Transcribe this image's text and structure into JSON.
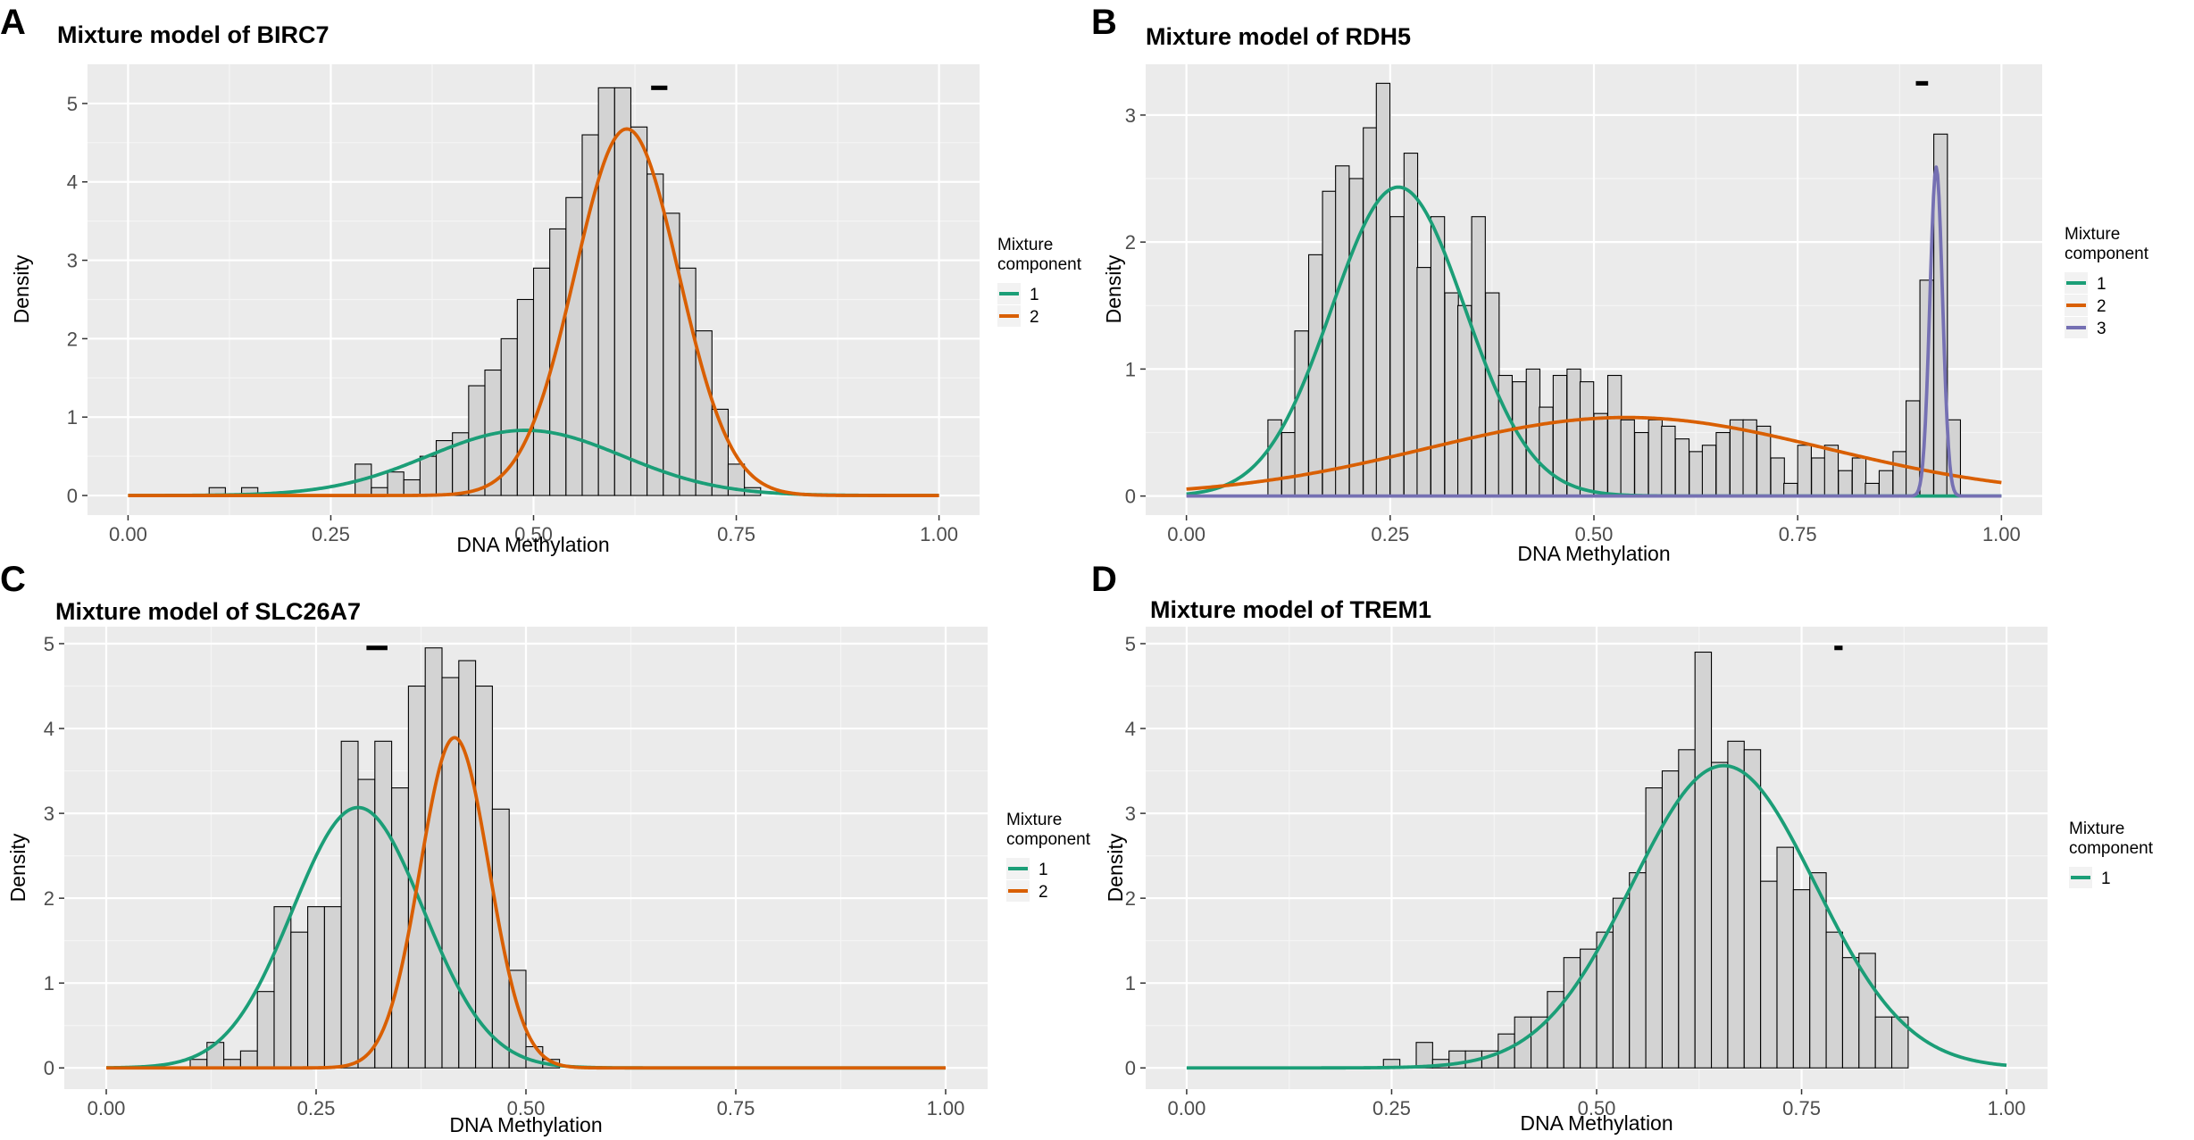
{
  "chart_data": [
    {
      "panel": "A",
      "type": "histogram+density",
      "title": "Mixture model of BIRC7",
      "xlabel": "DNA Methylation",
      "ylabel": "Density",
      "xlim": [
        -0.05,
        1.05
      ],
      "ylim": [
        -0.25,
        5.5
      ],
      "xticks": [
        0,
        0.25,
        0.5,
        0.75,
        1
      ],
      "xtick_labels": [
        "0.00",
        "0.25",
        "0.50",
        "0.75",
        "1.00"
      ],
      "yticks": [
        0,
        1,
        2,
        3,
        4,
        5
      ],
      "ytick_labels": [
        "0",
        "1",
        "2",
        "3",
        "4",
        "5"
      ],
      "bin_width": 0.02,
      "bins_start": [
        0.1,
        0.12,
        0.14,
        0.16,
        0.18,
        0.2,
        0.22,
        0.24,
        0.26,
        0.28,
        0.3,
        0.32,
        0.34,
        0.36,
        0.38,
        0.4,
        0.42,
        0.44,
        0.46,
        0.48,
        0.5,
        0.52,
        0.54,
        0.56,
        0.58,
        0.6,
        0.62,
        0.64,
        0.66,
        0.68,
        0.7,
        0.72,
        0.74,
        0.76,
        0.78
      ],
      "bin_density": [
        0.1,
        0,
        0.1,
        0,
        0,
        0,
        0,
        0,
        0,
        0.4,
        0.1,
        0.3,
        0.2,
        0.5,
        0.7,
        0.8,
        1.4,
        1.6,
        2.0,
        2.5,
        2.9,
        3.4,
        3.8,
        4.6,
        5.2,
        5.2,
        4.7,
        4.1,
        3.6,
        2.9,
        2.1,
        1.1,
        0.4,
        0.1,
        0
      ],
      "components": [
        {
          "name": "1",
          "color": "#1b9e77",
          "weight": 0.25,
          "mean": 0.49,
          "sd": 0.12
        },
        {
          "name": "2",
          "color": "#d95f02",
          "weight": 0.75,
          "mean": 0.615,
          "sd": 0.064
        }
      ],
      "ci_bar": [
        0.645,
        0.665
      ],
      "ci_bar_y": 5.2,
      "legend_title": [
        "Mixture",
        "component"
      ],
      "legend": [
        "1",
        "2"
      ]
    },
    {
      "panel": "B",
      "type": "histogram+density",
      "title": "Mixture model of RDH5",
      "xlabel": "DNA Methylation",
      "ylabel": "Density",
      "xlim": [
        -0.05,
        1.05
      ],
      "ylim": [
        -0.15,
        3.4
      ],
      "xticks": [
        0,
        0.25,
        0.5,
        0.75,
        1
      ],
      "xtick_labels": [
        "0.00",
        "0.25",
        "0.50",
        "0.75",
        "1.00"
      ],
      "yticks": [
        0,
        1,
        2,
        3
      ],
      "ytick_labels": [
        "0",
        "1",
        "2",
        "3"
      ],
      "bin_width": 0.0167,
      "bins_start": [
        0.1,
        0.117,
        0.133,
        0.15,
        0.167,
        0.183,
        0.2,
        0.217,
        0.233,
        0.25,
        0.267,
        0.283,
        0.3,
        0.317,
        0.333,
        0.35,
        0.367,
        0.383,
        0.4,
        0.417,
        0.433,
        0.45,
        0.467,
        0.483,
        0.5,
        0.517,
        0.533,
        0.55,
        0.567,
        0.583,
        0.6,
        0.617,
        0.633,
        0.65,
        0.667,
        0.683,
        0.7,
        0.717,
        0.733,
        0.75,
        0.767,
        0.783,
        0.8,
        0.817,
        0.833,
        0.85,
        0.867,
        0.883,
        0.9,
        0.917,
        0.933,
        0.95
      ],
      "bin_density": [
        0.6,
        0.5,
        1.3,
        1.9,
        2.4,
        2.6,
        2.5,
        2.9,
        3.25,
        2.2,
        2.7,
        1.8,
        2.2,
        1.6,
        1.5,
        2.2,
        1.6,
        0.95,
        0.9,
        1.0,
        0.7,
        0.95,
        1.0,
        0.9,
        0.65,
        0.95,
        0.6,
        0.5,
        0.6,
        0.55,
        0.45,
        0.35,
        0.4,
        0.5,
        0.6,
        0.6,
        0.55,
        0.3,
        0.1,
        0.4,
        0.3,
        0.4,
        0.2,
        0.3,
        0.1,
        0.2,
        0.35,
        0.75,
        1.7,
        2.85,
        0.6,
        0.0
      ],
      "components": [
        {
          "name": "1",
          "color": "#1b9e77",
          "weight": 0.5,
          "mean": 0.26,
          "sd": 0.082
        },
        {
          "name": "2",
          "color": "#d95f02",
          "weight": 0.38,
          "mean": 0.54,
          "sd": 0.245
        },
        {
          "name": "3",
          "color": "#7570b3",
          "weight": 0.05,
          "mean": 0.92,
          "sd": 0.0077
        }
      ],
      "ci_bar": [
        0.895,
        0.91
      ],
      "ci_bar_y": 3.25,
      "legend_title": [
        "Mixture",
        "component"
      ],
      "legend": [
        "1",
        "2",
        "3"
      ]
    },
    {
      "panel": "C",
      "type": "histogram+density",
      "title": "Mixture model of SLC26A7",
      "xlabel": "DNA Methylation",
      "ylabel": "Density",
      "xlim": [
        -0.05,
        1.05
      ],
      "ylim": [
        -0.25,
        5.2
      ],
      "xticks": [
        0,
        0.25,
        0.5,
        0.75,
        1
      ],
      "xtick_labels": [
        "0.00",
        "0.25",
        "0.50",
        "0.75",
        "1.00"
      ],
      "yticks": [
        0,
        1,
        2,
        3,
        4,
        5
      ],
      "ytick_labels": [
        "0",
        "1",
        "2",
        "3",
        "4",
        "5"
      ],
      "bin_width": 0.02,
      "bins_start": [
        0.1,
        0.12,
        0.14,
        0.16,
        0.18,
        0.2,
        0.22,
        0.24,
        0.26,
        0.28,
        0.3,
        0.32,
        0.34,
        0.36,
        0.38,
        0.4,
        0.42,
        0.44,
        0.46,
        0.48,
        0.5,
        0.52
      ],
      "bin_density": [
        0.1,
        0.3,
        0.1,
        0.2,
        0.9,
        1.9,
        1.6,
        1.9,
        1.9,
        3.85,
        3.4,
        3.85,
        3.3,
        4.5,
        4.95,
        4.6,
        4.8,
        4.5,
        3.05,
        1.15,
        0.25,
        0.1
      ],
      "components": [
        {
          "name": "1",
          "color": "#1b9e77",
          "weight": 0.6,
          "mean": 0.3,
          "sd": 0.078
        },
        {
          "name": "2",
          "color": "#d95f02",
          "weight": 0.4,
          "mean": 0.415,
          "sd": 0.041
        }
      ],
      "ci_bar": [
        0.31,
        0.335
      ],
      "ci_bar_y": 4.95,
      "legend_title": [
        "Mixture",
        "component"
      ],
      "legend": [
        "1",
        "2"
      ]
    },
    {
      "panel": "D",
      "type": "histogram+density",
      "title": "Mixture model of TREM1",
      "xlabel": "DNA Methylation",
      "ylabel": "Density",
      "xlim": [
        -0.05,
        1.05
      ],
      "ylim": [
        -0.25,
        5.2
      ],
      "xticks": [
        0,
        0.25,
        0.5,
        0.75,
        1
      ],
      "xtick_labels": [
        "0.00",
        "0.25",
        "0.50",
        "0.75",
        "1.00"
      ],
      "yticks": [
        0,
        1,
        2,
        3,
        4,
        5
      ],
      "ytick_labels": [
        "0",
        "1",
        "2",
        "3",
        "4",
        "5"
      ],
      "bin_width": 0.02,
      "bins_start": [
        0.24,
        0.26,
        0.28,
        0.3,
        0.32,
        0.34,
        0.36,
        0.38,
        0.4,
        0.42,
        0.44,
        0.46,
        0.48,
        0.5,
        0.52,
        0.54,
        0.56,
        0.58,
        0.6,
        0.62,
        0.64,
        0.66,
        0.68,
        0.7,
        0.72,
        0.74,
        0.76,
        0.78,
        0.8,
        0.82,
        0.84,
        0.86
      ],
      "bin_density": [
        0.1,
        0,
        0.3,
        0.1,
        0.2,
        0.2,
        0.2,
        0.4,
        0.6,
        0.6,
        0.9,
        1.3,
        1.4,
        1.6,
        2.0,
        2.3,
        3.3,
        3.5,
        3.75,
        4.9,
        3.6,
        3.85,
        3.75,
        2.2,
        2.6,
        2.1,
        2.3,
        1.6,
        1.3,
        1.35,
        0.6,
        0.6
      ],
      "components": [
        {
          "name": "1",
          "color": "#1b9e77",
          "weight": 1.0,
          "mean": 0.655,
          "sd": 0.112
        }
      ],
      "ci_bar": [
        0.79,
        0.8
      ],
      "ci_bar_y": 4.95,
      "legend_title": [
        "Mixture",
        "component"
      ],
      "legend": [
        "1"
      ]
    }
  ]
}
